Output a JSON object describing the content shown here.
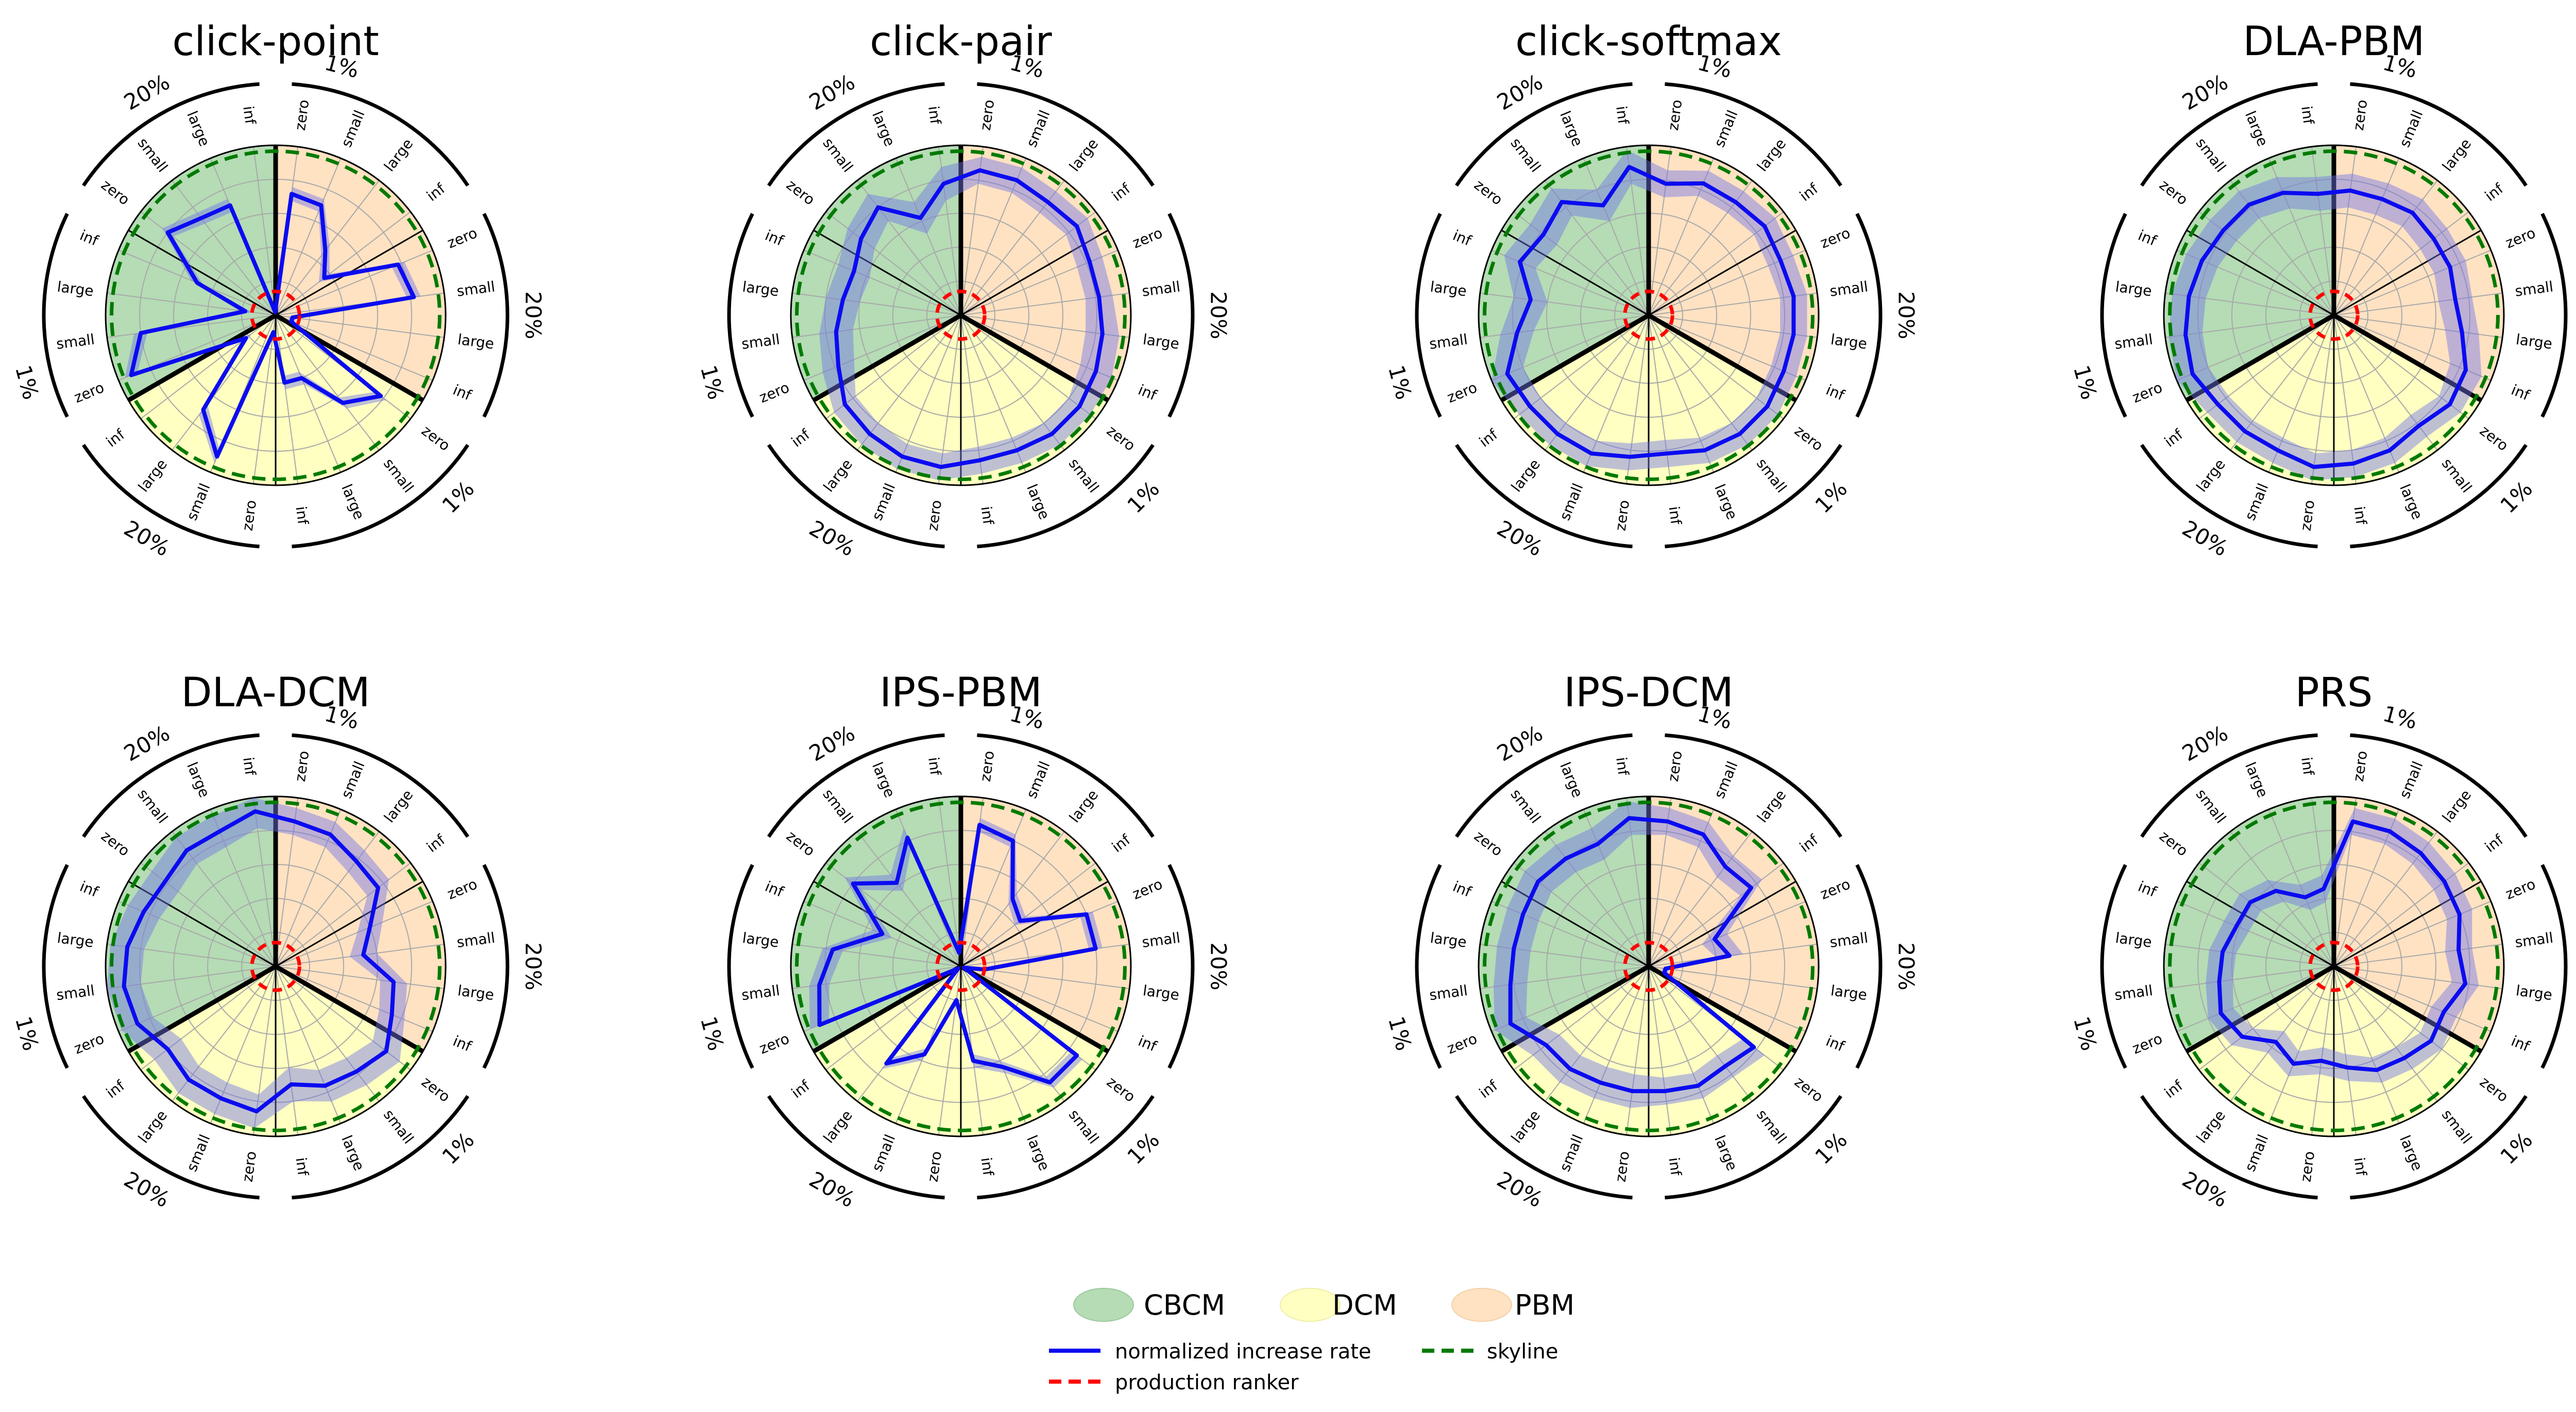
{
  "figure": {
    "legend": {
      "regions": [
        {
          "label": "CBCM",
          "color": "#b5dcb5"
        },
        {
          "label": "DCM",
          "color": "#ffffc2"
        },
        {
          "label": "PBM",
          "color": "#ffe2c2"
        }
      ],
      "lines": [
        {
          "label": "normalized increase rate",
          "color": "#0b0bf0",
          "dash": "solid"
        },
        {
          "label": "production ranker",
          "color": "#ff0000",
          "dash": "dashed"
        },
        {
          "label": "skyline",
          "color": "#007a00",
          "dash": "dashed"
        }
      ]
    }
  },
  "chart_data": [
    {
      "type": "radar",
      "title": "click-point",
      "axes": [
        "zero",
        "small",
        "large",
        "inf",
        "zero",
        "small",
        "large",
        "inf",
        "zero",
        "small",
        "large",
        "inf",
        "zero",
        "small",
        "large",
        "inf",
        "zero",
        "small",
        "large",
        "inf",
        "zero",
        "small",
        "large",
        "inf"
      ],
      "group_labels": [
        "1%",
        "20%",
        "1%",
        "20%",
        "1%",
        "20%"
      ],
      "regions": [
        "PBM",
        "DCM",
        "CBCM"
      ],
      "series": [
        {
          "name": "normalized increase rate",
          "values": [
            0.72,
            0.7,
            0.48,
            0.36,
            0.78,
            0.82,
            0.1,
            0.1,
            0.78,
            0.65,
            0.4,
            0.4,
            0.1,
            0.9,
            0.7,
            0.22,
            0.92,
            0.8,
            0.18,
            0.5,
            0.8,
            0.72,
            0.7,
            0.02
          ],
          "band": [
            0.04,
            0.04,
            0.04,
            0.04,
            0.04,
            0.04,
            0.02,
            0.02,
            0.04,
            0.04,
            0.04,
            0.04,
            0.02,
            0.04,
            0.04,
            0.04,
            0.04,
            0.04,
            0.04,
            0.04,
            0.04,
            0.04,
            0.04,
            0.02
          ]
        }
      ],
      "skyline": 1.0,
      "production_ranker": 0.14
    },
    {
      "type": "radar",
      "title": "click-pair",
      "axes": [
        "zero",
        "small",
        "large",
        "inf",
        "zero",
        "small",
        "large",
        "inf",
        "zero",
        "small",
        "large",
        "inf",
        "zero",
        "small",
        "large",
        "inf",
        "zero",
        "small",
        "large",
        "inf",
        "zero",
        "small",
        "large",
        "inf"
      ],
      "group_labels": [
        "1%",
        "20%",
        "1%",
        "20%",
        "1%",
        "20%"
      ],
      "regions": [
        "PBM",
        "DCM",
        "CBCM"
      ],
      "series": [
        {
          "name": "normalized increase rate",
          "values": [
            0.86,
            0.86,
            0.84,
            0.86,
            0.82,
            0.82,
            0.84,
            0.86,
            0.88,
            0.88,
            0.86,
            0.86,
            0.9,
            0.9,
            0.88,
            0.86,
            0.78,
            0.74,
            0.7,
            0.68,
            0.74,
            0.8,
            0.62,
            0.78
          ],
          "band": [
            0.08,
            0.08,
            0.08,
            0.08,
            0.08,
            0.08,
            0.1,
            0.1,
            0.08,
            0.08,
            0.08,
            0.08,
            0.08,
            0.08,
            0.08,
            0.08,
            0.1,
            0.1,
            0.1,
            0.1,
            0.1,
            0.1,
            0.1,
            0.1
          ]
        }
      ],
      "skyline": 1.0,
      "production_ranker": 0.14
    },
    {
      "type": "radar",
      "title": "click-softmax",
      "axes": [
        "zero",
        "small",
        "large",
        "inf",
        "zero",
        "small",
        "large",
        "inf",
        "zero",
        "small",
        "large",
        "inf",
        "zero",
        "small",
        "large",
        "inf",
        "zero",
        "small",
        "large",
        "inf",
        "zero",
        "small",
        "large",
        "inf"
      ],
      "group_labels": [
        "1%",
        "20%",
        "1%",
        "20%",
        "1%",
        "20%"
      ],
      "regions": [
        "PBM",
        "DCM",
        "CBCM"
      ],
      "series": [
        {
          "name": "normalized increase rate",
          "values": [
            0.78,
            0.84,
            0.84,
            0.86,
            0.84,
            0.86,
            0.86,
            0.86,
            0.88,
            0.88,
            0.86,
            0.82,
            0.84,
            0.88,
            0.88,
            0.88,
            0.9,
            0.78,
            0.7,
            0.82,
            0.78,
            0.84,
            0.7,
            0.88
          ],
          "band": [
            0.08,
            0.08,
            0.08,
            0.08,
            0.08,
            0.08,
            0.08,
            0.08,
            0.08,
            0.08,
            0.08,
            0.08,
            0.08,
            0.08,
            0.08,
            0.08,
            0.1,
            0.1,
            0.1,
            0.1,
            0.1,
            0.1,
            0.1,
            0.1
          ]
        }
      ],
      "skyline": 1.0,
      "production_ranker": 0.14
    },
    {
      "type": "radar",
      "title": "DLA-PBM",
      "axes": [
        "zero",
        "small",
        "large",
        "inf",
        "zero",
        "small",
        "large",
        "inf",
        "zero",
        "small",
        "large",
        "inf",
        "zero",
        "small",
        "large",
        "inf",
        "zero",
        "small",
        "large",
        "inf",
        "zero",
        "small",
        "large",
        "inf"
      ],
      "group_labels": [
        "1%",
        "20%",
        "1%",
        "20%",
        "1%",
        "20%"
      ],
      "regions": [
        "PBM",
        "DCM",
        "CBCM"
      ],
      "series": [
        {
          "name": "normalized increase rate",
          "values": [
            0.74,
            0.74,
            0.76,
            0.74,
            0.74,
            0.72,
            0.76,
            0.84,
            0.86,
            0.82,
            0.86,
            0.88,
            0.9,
            0.86,
            0.86,
            0.86,
            0.9,
            0.88,
            0.86,
            0.84,
            0.82,
            0.82,
            0.78,
            0.72
          ],
          "band": [
            0.1,
            0.1,
            0.1,
            0.1,
            0.1,
            0.1,
            0.1,
            0.1,
            0.08,
            0.08,
            0.08,
            0.08,
            0.08,
            0.08,
            0.08,
            0.08,
            0.1,
            0.1,
            0.1,
            0.1,
            0.1,
            0.1,
            0.1,
            0.1
          ]
        }
      ],
      "skyline": 1.0,
      "production_ranker": 0.14
    },
    {
      "type": "radar",
      "title": "DLA-DCM",
      "axes": [
        "zero",
        "small",
        "large",
        "inf",
        "zero",
        "small",
        "large",
        "inf",
        "zero",
        "small",
        "large",
        "inf",
        "zero",
        "small",
        "large",
        "inf",
        "zero",
        "small",
        "large",
        "inf",
        "zero",
        "small",
        "large",
        "inf"
      ],
      "group_labels": [
        "1%",
        "20%",
        "1%",
        "20%",
        "1%",
        "20%"
      ],
      "regions": [
        "PBM",
        "DCM",
        "CBCM"
      ],
      "series": [
        {
          "name": "normalized increase rate",
          "values": [
            0.86,
            0.84,
            0.78,
            0.76,
            0.6,
            0.52,
            0.7,
            0.74,
            0.82,
            0.78,
            0.76,
            0.7,
            0.86,
            0.84,
            0.84,
            0.8,
            0.88,
            0.9,
            0.88,
            0.84,
            0.82,
            0.86,
            0.86,
            0.92
          ],
          "band": [
            0.08,
            0.08,
            0.08,
            0.08,
            0.08,
            0.08,
            0.08,
            0.08,
            0.1,
            0.1,
            0.1,
            0.1,
            0.1,
            0.1,
            0.1,
            0.1,
            0.1,
            0.1,
            0.1,
            0.1,
            0.1,
            0.1,
            0.1,
            0.1
          ]
        }
      ],
      "skyline": 1.0,
      "production_ranker": 0.14
    },
    {
      "type": "radar",
      "title": "IPS-PBM",
      "axes": [
        "zero",
        "small",
        "large",
        "inf",
        "zero",
        "small",
        "large",
        "inf",
        "zero",
        "small",
        "large",
        "inf",
        "zero",
        "small",
        "large",
        "inf",
        "zero",
        "small",
        "large",
        "inf",
        "zero",
        "small",
        "large",
        "inf"
      ],
      "group_labels": [
        "1%",
        "20%",
        "1%",
        "20%",
        "1%",
        "20%"
      ],
      "regions": [
        "PBM",
        "DCM",
        "CBCM"
      ],
      "series": [
        {
          "name": "normalized increase rate",
          "values": [
            0.84,
            0.8,
            0.5,
            0.44,
            0.8,
            0.8,
            0.14,
            0.02,
            0.86,
            0.86,
            0.64,
            0.56,
            0.2,
            0.56,
            0.72,
            0.02,
            0.9,
            0.84,
            0.76,
            0.5,
            0.8,
            0.62,
            0.82,
            0.08
          ],
          "band": [
            0.04,
            0.04,
            0.04,
            0.04,
            0.04,
            0.04,
            0.02,
            0.02,
            0.04,
            0.04,
            0.04,
            0.04,
            0.02,
            0.04,
            0.04,
            0.02,
            0.06,
            0.06,
            0.06,
            0.06,
            0.06,
            0.06,
            0.06,
            0.02
          ]
        }
      ],
      "skyline": 1.0,
      "production_ranker": 0.14
    },
    {
      "type": "radar",
      "title": "IPS-DCM",
      "axes": [
        "zero",
        "small",
        "large",
        "inf",
        "zero",
        "small",
        "large",
        "inf",
        "zero",
        "small",
        "large",
        "inf",
        "zero",
        "small",
        "large",
        "inf",
        "zero",
        "small",
        "large",
        "inf",
        "zero",
        "small",
        "large",
        "inf"
      ],
      "group_labels": [
        "1%",
        "20%",
        "1%",
        "20%",
        "1%",
        "20%"
      ],
      "regions": [
        "PBM",
        "DCM",
        "CBCM"
      ],
      "series": [
        {
          "name": "normalized increase rate",
          "values": [
            0.86,
            0.84,
            0.74,
            0.76,
            0.42,
            0.48,
            0.1,
            0.1,
            0.78,
            0.74,
            0.76,
            0.74,
            0.74,
            0.74,
            0.76,
            0.76,
            0.88,
            0.82,
            0.8,
            0.8,
            0.82,
            0.8,
            0.78,
            0.88
          ],
          "band": [
            0.08,
            0.08,
            0.08,
            0.08,
            0.08,
            0.08,
            0.02,
            0.02,
            0.08,
            0.08,
            0.08,
            0.08,
            0.1,
            0.1,
            0.1,
            0.1,
            0.1,
            0.1,
            0.1,
            0.1,
            0.1,
            0.1,
            0.1,
            0.1
          ]
        }
      ],
      "skyline": 1.0,
      "production_ranker": 0.14
    },
    {
      "type": "radar",
      "title": "PRS",
      "axes": [
        "zero",
        "small",
        "large",
        "inf",
        "zero",
        "small",
        "large",
        "inf",
        "zero",
        "small",
        "large",
        "inf",
        "zero",
        "small",
        "large",
        "inf",
        "zero",
        "small",
        "large",
        "inf",
        "zero",
        "small",
        "large",
        "inf"
      ],
      "group_labels": [
        "1%",
        "20%",
        "1%",
        "20%",
        "1%",
        "20%"
      ],
      "regions": [
        "PBM",
        "DCM",
        "CBCM"
      ],
      "series": [
        {
          "name": "normalized increase rate",
          "values": [
            0.86,
            0.86,
            0.84,
            0.82,
            0.8,
            0.74,
            0.78,
            0.7,
            0.72,
            0.68,
            0.66,
            0.6,
            0.56,
            0.62,
            0.56,
            0.68,
            0.72,
            0.68,
            0.66,
            0.62,
            0.62,
            0.56,
            0.44,
            0.46
          ],
          "band": [
            0.08,
            0.08,
            0.08,
            0.08,
            0.08,
            0.08,
            0.08,
            0.08,
            0.08,
            0.08,
            0.08,
            0.08,
            0.08,
            0.08,
            0.08,
            0.08,
            0.08,
            0.08,
            0.08,
            0.08,
            0.08,
            0.08,
            0.08,
            0.08
          ]
        }
      ],
      "skyline": 1.0,
      "production_ranker": 0.14
    }
  ]
}
